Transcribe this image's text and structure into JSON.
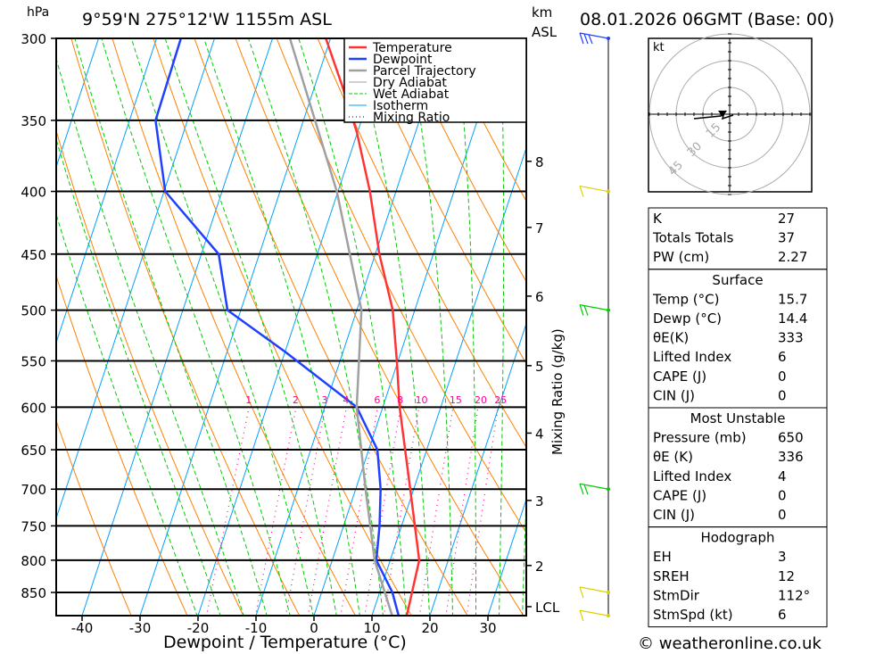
{
  "header": {
    "pressure_unit": "hPa",
    "location": "9°59'N  275°12'W  1155m  ASL",
    "km_label": "km",
    "asl_label": "ASL",
    "datetime": "08.01.2026  06GMT  (Base: 00)"
  },
  "legend": [
    "Temperature",
    "Dewpoint",
    "Parcel Trajectory",
    "Dry Adiabat",
    "Wet Adiabat",
    "Isotherm",
    "Mixing Ratio"
  ],
  "colors": {
    "temperature": "#ff3333",
    "dewpoint": "#2040ff",
    "parcel": "#a0a0a0",
    "dry": "#ff8000",
    "wet": "#00cc00",
    "isotherm": "#00a0ff",
    "mixing": "#ff0090"
  },
  "chart_data": {
    "type": "line",
    "title": "Skew-T log-P",
    "xlabel": "Dewpoint / Temperature (°C)",
    "ylabel": "hPa",
    "xticks": [
      -40,
      -30,
      -20,
      -10,
      0,
      10,
      20,
      30
    ],
    "yticks": [
      300,
      350,
      400,
      450,
      500,
      550,
      600,
      650,
      700,
      750,
      800,
      850
    ],
    "ylim": [
      890,
      300
    ],
    "km_ticks": [
      {
        "km": "8",
        "p": 378
      },
      {
        "km": "7",
        "p": 428
      },
      {
        "km": "6",
        "p": 487
      },
      {
        "km": "5",
        "p": 555
      },
      {
        "km": "4",
        "p": 630
      },
      {
        "km": "3",
        "p": 715
      },
      {
        "km": "2",
        "p": 808
      },
      {
        "km": "LCL",
        "p": 873
      }
    ],
    "mixing_ratio_label": "Mixing Ratio (g/kg)",
    "mixing_ratios": [
      "1",
      "2",
      "3",
      "4",
      "6",
      "8",
      "10",
      "15",
      "20",
      "25"
    ],
    "series": [
      {
        "name": "Temperature",
        "p": [
          888,
          800,
          700,
          600,
          550,
          500,
          450,
          400,
          358,
          330,
          300
        ],
        "t": [
          16.0,
          15.0,
          9.4,
          2.9,
          -0.2,
          -3.8,
          -9.3,
          -14.5,
          -20.1,
          -24.9,
          -30.8
        ]
      },
      {
        "name": "Dewpoint",
        "p": [
          888,
          850,
          800,
          750,
          700,
          650,
          600,
          541,
          500,
          450,
          400,
          350,
          300
        ],
        "t": [
          14.6,
          12.2,
          7.6,
          6.2,
          4.3,
          1.5,
          -4.5,
          -19.9,
          -32.3,
          -37.0,
          -49.8,
          -55.5,
          -55.8
        ]
      },
      {
        "name": "Parcel Trajectory",
        "p": [
          888,
          800,
          700,
          600,
          500,
          400,
          300
        ],
        "t": [
          13.5,
          7.3,
          1.7,
          -4.5,
          -9.2,
          -20.2,
          -37.0
        ]
      }
    ]
  },
  "hodograph": {
    "unit": "kt",
    "rings": [
      "15",
      "30",
      "45"
    ]
  },
  "indices": {
    "top": [
      [
        "K",
        "27"
      ],
      [
        "Totals Totals",
        "37"
      ],
      [
        "PW (cm)",
        "2.27"
      ]
    ],
    "surface_title": "Surface",
    "surface": [
      [
        "Temp (°C)",
        "15.7"
      ],
      [
        "Dewp (°C)",
        "14.4"
      ],
      [
        "θE(K)",
        "333"
      ],
      [
        "Lifted Index",
        "6"
      ],
      [
        "CAPE (J)",
        "0"
      ],
      [
        "CIN (J)",
        "0"
      ]
    ],
    "mu_title": "Most Unstable",
    "mu": [
      [
        "Pressure (mb)",
        "650"
      ],
      [
        "θE (K)",
        "336"
      ],
      [
        "Lifted Index",
        "4"
      ],
      [
        "CAPE (J)",
        "0"
      ],
      [
        "CIN (J)",
        "0"
      ]
    ],
    "hodo_title": "Hodograph",
    "hodo": [
      [
        "EH",
        "3"
      ],
      [
        "SREH",
        "12"
      ],
      [
        "StmDir",
        "112°"
      ],
      [
        "StmSpd (kt)",
        "6"
      ]
    ]
  },
  "footer": {
    "copyright": "© weatheronline.co.uk"
  }
}
